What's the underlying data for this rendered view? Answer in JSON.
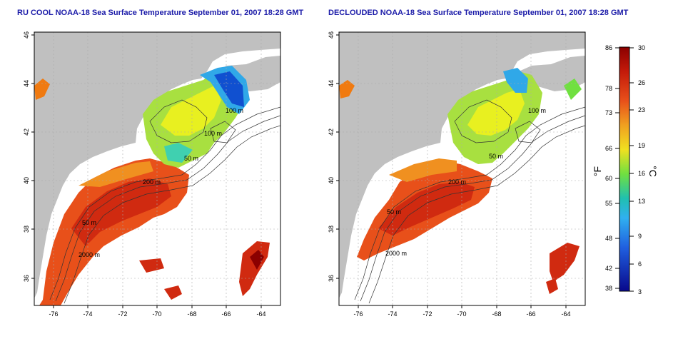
{
  "titles": {
    "left": "RU COOL NOAA-18 Sea Surface Temperature September 01, 2007 18:28 GMT",
    "right": "DECLOUDED NOAA-18 Sea Surface Temperature September 01, 2007 18:28 GMT"
  },
  "maps": {
    "lat_ticks": [
      "46",
      "44",
      "42",
      "40",
      "38",
      "36"
    ],
    "lon_ticks": [
      "-76",
      "-74",
      "-72",
      "-70",
      "-68",
      "-66",
      "-64"
    ],
    "contour_labels": {
      "left": [
        "100 m",
        "100 m",
        "50 m",
        "200 m",
        "50 m",
        "2000 m"
      ],
      "right": [
        "100 m",
        "50 m",
        "200 m",
        "50 m",
        "2000 m"
      ]
    }
  },
  "colorbar": {
    "f_label": "°F",
    "c_label": "°C",
    "f_ticks": [
      "86",
      "78",
      "73",
      "66",
      "60",
      "55",
      "48",
      "42",
      "38"
    ],
    "c_ticks": [
      "30",
      "26",
      "23",
      "19",
      "16",
      "13",
      "9",
      "6",
      "3"
    ],
    "colors": {
      "c30": "#8b0000",
      "c26": "#d42a10",
      "c23": "#f07a10",
      "c19": "#f0e020",
      "c16": "#30d070",
      "c13": "#30c0e0",
      "c9": "#3070e0",
      "c3": "#08088b"
    }
  },
  "colors": {
    "land": "#c0c0c0",
    "ocean": "#ffffff",
    "title": "#1a1aa8"
  }
}
